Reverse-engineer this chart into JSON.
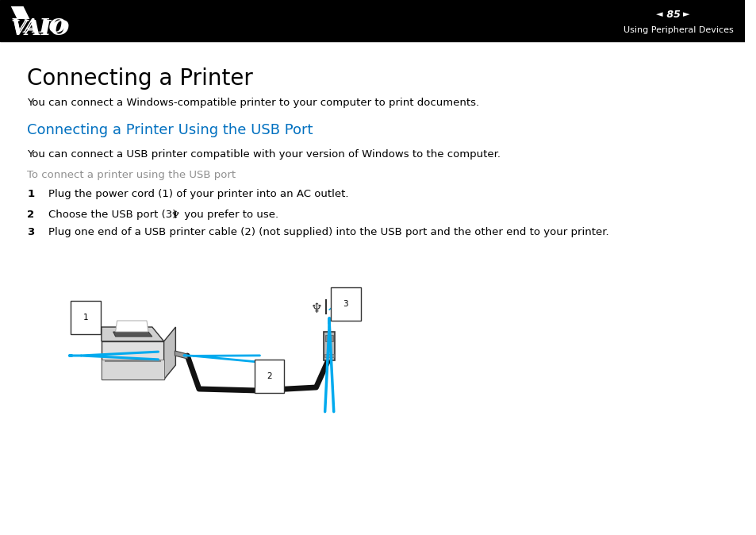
{
  "bg_color": "#ffffff",
  "header_bg": "#000000",
  "page_number": "85",
  "header_right_text": "Using Peripheral Devices",
  "title_main": "Connecting a Printer",
  "title_main_fontsize": 20,
  "body_text1": "You can connect a Windows-compatible printer to your computer to print documents.",
  "section_title": "Connecting a Printer Using the USB Port",
  "section_title_color": "#0070C0",
  "section_title_fontsize": 13,
  "body_text2": "You can connect a USB printer compatible with your version of Windows to the computer.",
  "sub_heading": "To connect a printer using the USB port",
  "sub_heading_color": "#909090",
  "step1_text": "Plug the power cord (1) of your printer into an AC outlet.",
  "step2_text_a": "Choose the USB port (3) ",
  "step2_text_b": " you prefer to use.",
  "step3_text": "Plug one end of a USB printer cable (2) (not supplied) into the USB port and the other end to your printer.",
  "step_fontsize": 9.5,
  "body_fontsize": 9.5,
  "arrow_color": "#00AAEE",
  "cable_color": "#111111"
}
